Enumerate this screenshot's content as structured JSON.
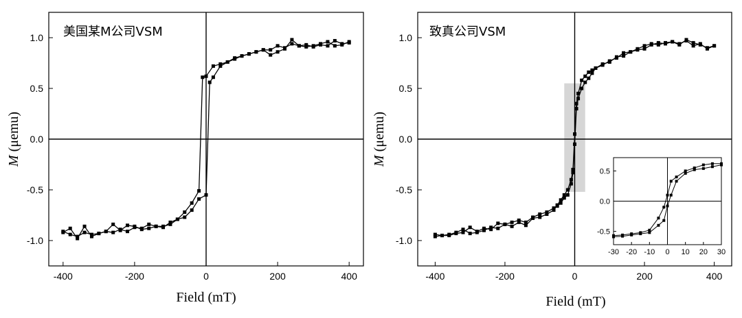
{
  "chart_data": [
    {
      "type": "line",
      "title": "美国某M公司VSM",
      "xlabel": "Field (mT)",
      "ylabel_italic": "M",
      "ylabel_rest": " (μemu)",
      "xlim": [
        -440,
        440
      ],
      "ylim": [
        -1.25,
        1.25
      ],
      "xticks": [
        -400,
        -200,
        0,
        200,
        400
      ],
      "xtick_labels": [
        "-400",
        "-200",
        "0",
        "200",
        "400"
      ],
      "yticks": [
        -1.0,
        -0.5,
        0.0,
        0.5,
        1.0
      ],
      "ytick_labels": [
        "-1.0",
        "-0.5",
        "0.0",
        "0.5",
        "1.0"
      ],
      "series": [
        {
          "name": "",
          "x": [
            400,
            380,
            360,
            340,
            320,
            300,
            280,
            260,
            240,
            220,
            200,
            180,
            160,
            140,
            120,
            100,
            80,
            60,
            40,
            20,
            0,
            -10,
            -20,
            -40,
            -60,
            -80,
            -100,
            -120,
            -140,
            -160,
            -180,
            -200,
            -220,
            -240,
            -260,
            -280,
            -300,
            -320,
            -340,
            -360,
            -380,
            -400
          ],
          "y": [
            0.95,
            0.94,
            0.97,
            0.92,
            0.93,
            0.91,
            0.93,
            0.92,
            0.98,
            0.89,
            0.86,
            0.83,
            0.88,
            0.86,
            0.84,
            0.82,
            0.8,
            0.76,
            0.74,
            0.72,
            0.62,
            0.61,
            -0.51,
            -0.63,
            -0.72,
            -0.79,
            -0.84,
            -0.86,
            -0.86,
            -0.88,
            -0.89,
            -0.86,
            -0.85,
            -0.9,
            -0.84,
            -0.91,
            -0.93,
            -0.96,
            -0.86,
            -0.98,
            -0.88,
            -0.92
          ]
        },
        {
          "name": "",
          "x": [
            -400,
            -380,
            -360,
            -340,
            -320,
            -300,
            -280,
            -260,
            -240,
            -220,
            -200,
            -180,
            -160,
            -140,
            -120,
            -100,
            -80,
            -60,
            -40,
            -20,
            0,
            10,
            20,
            40,
            60,
            80,
            100,
            120,
            140,
            160,
            180,
            200,
            220,
            240,
            260,
            280,
            300,
            320,
            340,
            360,
            380,
            400
          ],
          "y": [
            -0.91,
            -0.94,
            -0.96,
            -0.92,
            -0.94,
            -0.93,
            -0.91,
            -0.92,
            -0.89,
            -0.91,
            -0.87,
            -0.88,
            -0.84,
            -0.86,
            -0.87,
            -0.82,
            -0.79,
            -0.77,
            -0.7,
            -0.59,
            -0.55,
            0.56,
            0.61,
            0.72,
            0.76,
            0.79,
            0.82,
            0.84,
            0.86,
            0.88,
            0.88,
            0.92,
            0.9,
            0.94,
            0.92,
            0.91,
            0.92,
            0.94,
            0.96,
            0.92,
            0.93,
            0.96
          ]
        }
      ]
    },
    {
      "type": "line",
      "title": "致真公司VSM",
      "xlabel": "Field (mT)",
      "ylabel_italic": "M",
      "ylabel_rest": " (μemu)",
      "xlim": [
        -450,
        450
      ],
      "ylim": [
        -1.25,
        1.25
      ],
      "xticks": [
        -400,
        -200,
        0,
        200,
        400
      ],
      "xtick_labels": [
        "-400",
        "-200",
        "0",
        "200",
        "400"
      ],
      "yticks": [
        -1.0,
        -0.5,
        0.0,
        0.5,
        1.0
      ],
      "ytick_labels": [
        "-1.0",
        "-0.5",
        "0.0",
        "0.5",
        "1.0"
      ],
      "highlight_region": {
        "x": [
          -30,
          30
        ],
        "y": [
          -0.52,
          0.55
        ]
      },
      "series": [
        {
          "name": "",
          "x": [
            400,
            380,
            360,
            340,
            320,
            300,
            280,
            260,
            240,
            220,
            200,
            180,
            160,
            140,
            120,
            100,
            80,
            60,
            50,
            40,
            30,
            20,
            10,
            5,
            0,
            -5,
            -10,
            -20,
            -30,
            -40,
            -50,
            -60,
            -80,
            -100,
            -120,
            -140,
            -160,
            -180,
            -200,
            -220,
            -240,
            -260,
            -280,
            -300,
            -320,
            -340,
            -360,
            -380,
            -400
          ],
          "y": [
            0.92,
            0.89,
            0.94,
            0.92,
            0.97,
            0.94,
            0.96,
            0.95,
            0.93,
            0.94,
            0.92,
            0.89,
            0.86,
            0.82,
            0.81,
            0.76,
            0.74,
            0.7,
            0.68,
            0.66,
            0.62,
            0.58,
            0.45,
            0.35,
            0.05,
            -0.3,
            -0.4,
            -0.5,
            -0.55,
            -0.6,
            -0.65,
            -0.7,
            -0.74,
            -0.77,
            -0.78,
            -0.85,
            -0.82,
            -0.86,
            -0.84,
            -0.83,
            -0.89,
            -0.88,
            -0.91,
            -0.87,
            -0.92,
            -0.93,
            -0.95,
            -0.95,
            -0.94
          ]
        },
        {
          "name": "",
          "x": [
            -400,
            -380,
            -360,
            -340,
            -320,
            -300,
            -280,
            -260,
            -240,
            -220,
            -200,
            -180,
            -160,
            -140,
            -120,
            -100,
            -80,
            -60,
            -50,
            -40,
            -30,
            -20,
            -10,
            -5,
            0,
            5,
            10,
            20,
            30,
            40,
            50,
            60,
            80,
            100,
            120,
            140,
            160,
            180,
            200,
            220,
            240,
            260,
            280,
            300,
            320,
            340,
            360,
            380,
            400
          ],
          "y": [
            -0.96,
            -0.95,
            -0.94,
            -0.92,
            -0.89,
            -0.93,
            -0.92,
            -0.9,
            -0.87,
            -0.88,
            -0.84,
            -0.82,
            -0.8,
            -0.82,
            -0.77,
            -0.74,
            -0.72,
            -0.68,
            -0.66,
            -0.63,
            -0.58,
            -0.55,
            -0.44,
            -0.33,
            -0.05,
            0.3,
            0.4,
            0.5,
            0.56,
            0.6,
            0.65,
            0.7,
            0.73,
            0.77,
            0.8,
            0.85,
            0.86,
            0.88,
            0.89,
            0.93,
            0.95,
            0.94,
            0.96,
            0.93,
            0.98,
            0.95,
            0.93,
            0.9,
            0.92
          ]
        }
      ]
    },
    {
      "type": "line",
      "title": "",
      "xlabel": "",
      "ylabel": "",
      "xlim": [
        -30,
        30
      ],
      "ylim": [
        -0.72,
        0.72
      ],
      "xticks": [
        -30,
        -20,
        -10,
        0,
        10,
        20,
        30
      ],
      "xtick_labels": [
        "-30",
        "-20",
        "-10",
        "0",
        "10",
        "20",
        "30"
      ],
      "yticks": [
        -0.5,
        0.0,
        0.5
      ],
      "ytick_labels": [
        "-0.5",
        "0.0",
        "0.5"
      ],
      "series": [
        {
          "name": "",
          "x": [
            30,
            25,
            20,
            15,
            10,
            5,
            2,
            0,
            -2,
            -5,
            -10,
            -15,
            -20,
            -25,
            -30
          ],
          "y": [
            0.62,
            0.62,
            0.6,
            0.55,
            0.5,
            0.4,
            0.33,
            0.1,
            -0.1,
            -0.28,
            -0.48,
            -0.52,
            -0.54,
            -0.56,
            -0.57
          ]
        },
        {
          "name": "",
          "x": [
            -30,
            -25,
            -20,
            -15,
            -10,
            -5,
            -2,
            0,
            2,
            5,
            10,
            15,
            20,
            25,
            30
          ],
          "y": [
            -0.59,
            -0.58,
            -0.56,
            -0.54,
            -0.52,
            -0.4,
            -0.32,
            -0.08,
            0.1,
            0.33,
            0.46,
            0.52,
            0.54,
            0.57,
            0.6
          ]
        }
      ]
    }
  ]
}
